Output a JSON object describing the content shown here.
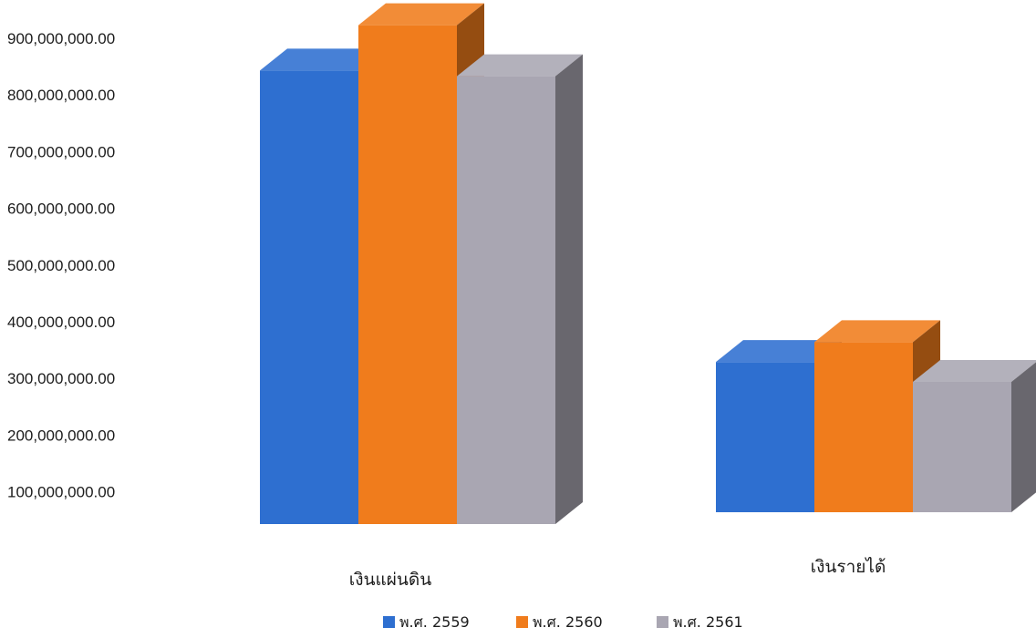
{
  "chart_data": {
    "type": "bar",
    "categories": [
      "เงินแผ่นดิน",
      "เงินรายได้"
    ],
    "series": [
      {
        "name": "พ.ศ. 2559",
        "values": [
          800000000,
          265000000
        ],
        "color": "#2e6fd0"
      },
      {
        "name": "พ.ศ. 2560",
        "values": [
          880000000,
          300000000
        ],
        "color": "#f07c1c"
      },
      {
        "name": "พ.ศ. 2561",
        "values": [
          790000000,
          230000000
        ],
        "color": "#a9a6b2"
      }
    ],
    "yticks": [
      "100,000,000.00",
      "200,000,000.00",
      "300,000,000.00",
      "400,000,000.00",
      "500,000,000.00",
      "600,000,000.00",
      "700,000,000.00",
      "800,000,000.00",
      "900,000,000.00"
    ],
    "ylim": [
      0,
      900000000
    ],
    "title": "",
    "xlabel": "",
    "ylabel": "",
    "style": "3d-clustered-column",
    "grid": false,
    "legend_position": "bottom"
  }
}
